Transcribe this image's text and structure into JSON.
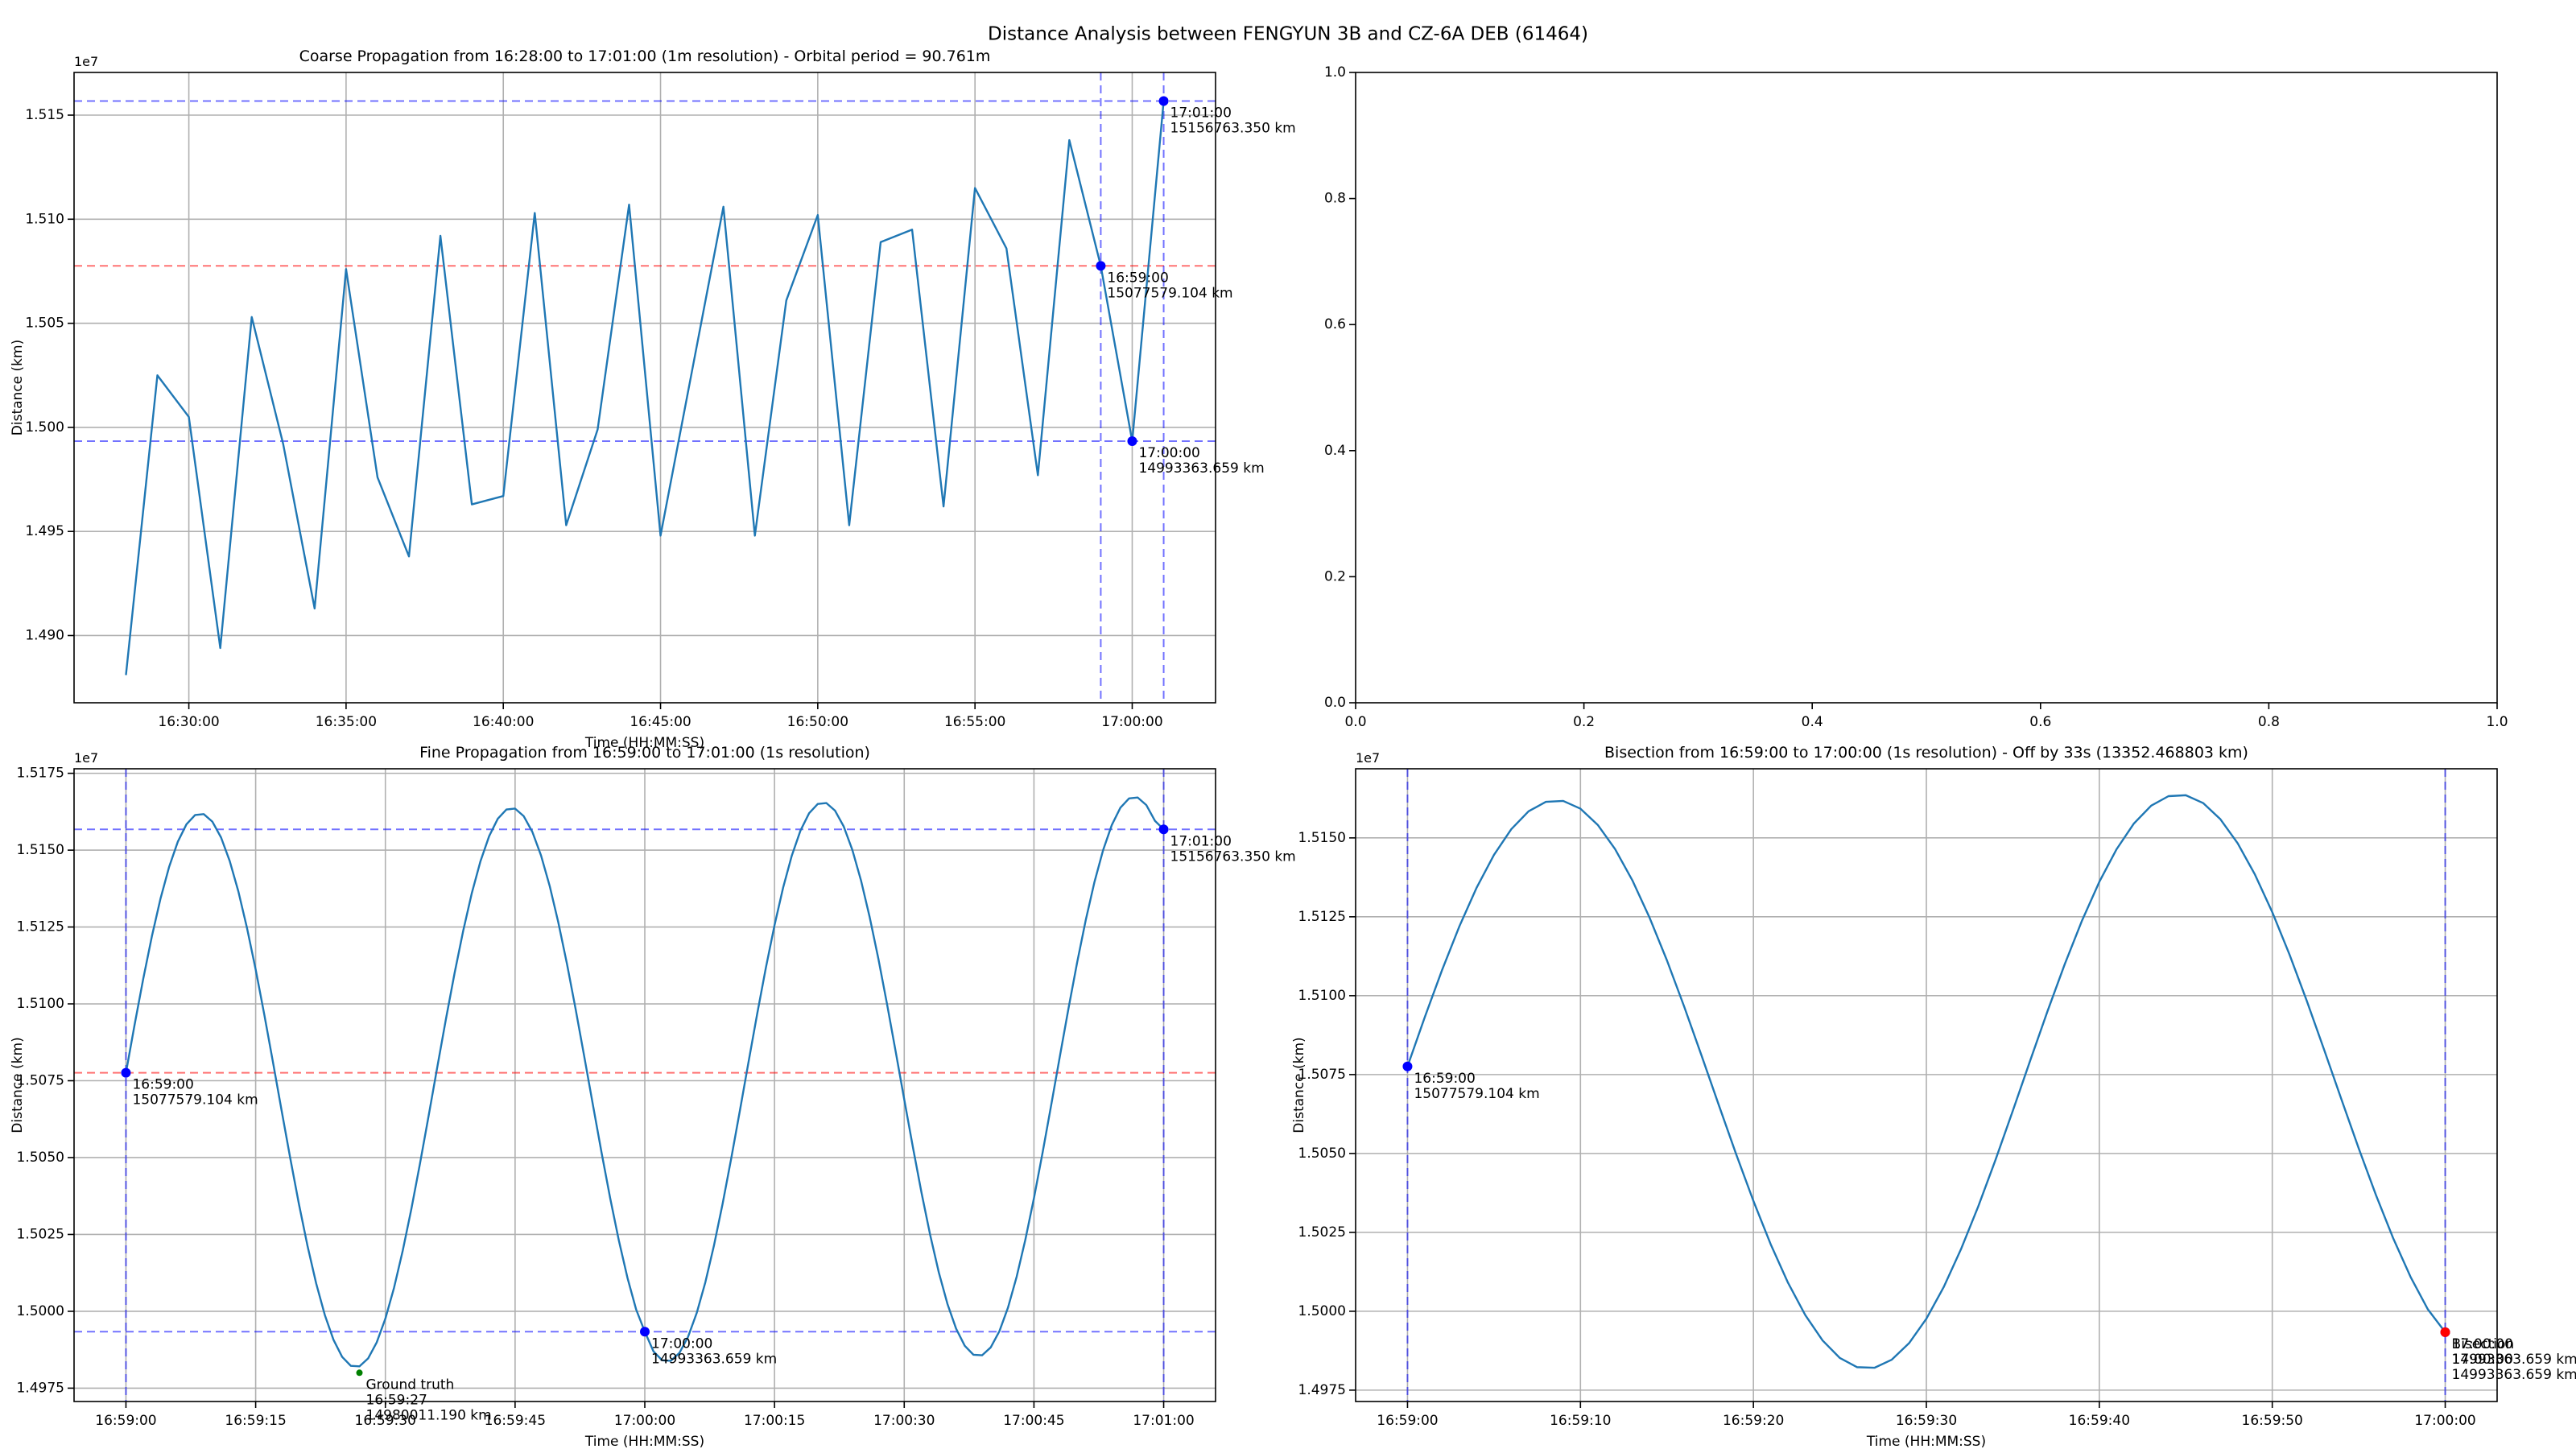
{
  "title": "Distance Analysis between FENGYUN 3B and CZ-6A DEB (61464)",
  "chart_data": [
    {
      "type": "line",
      "title": "Coarse Propagation from 16:28:00 to 17:01:00 (1m resolution) - Orbital period = 90.761m",
      "xlabel": "Time (HH:MM:SS)",
      "ylabel": "Distance (km)",
      "y_offset_label": "1e7",
      "grid": true,
      "color": "#1f77b4",
      "x": [
        "16:28:00",
        "16:29:00",
        "16:30:00",
        "16:31:00",
        "16:32:00",
        "16:33:00",
        "16:34:00",
        "16:35:00",
        "16:36:00",
        "16:37:00",
        "16:38:00",
        "16:39:00",
        "16:40:00",
        "16:41:00",
        "16:42:00",
        "16:43:00",
        "16:44:00",
        "16:45:00",
        "16:46:00",
        "16:47:00",
        "16:48:00",
        "16:49:00",
        "16:50:00",
        "16:51:00",
        "16:52:00",
        "16:53:00",
        "16:54:00",
        "16:55:00",
        "16:56:00",
        "16:57:00",
        "16:58:00",
        "16:59:00",
        "17:00:00",
        "17:01:00"
      ],
      "values": [
        14881000,
        15025000,
        15005000,
        14894000,
        15053000,
        14992000,
        14913000,
        15076000,
        14976000,
        14938000,
        15092000,
        14963000,
        14967000,
        15103000,
        14953000,
        14999000,
        15107000,
        14948000,
        15027000,
        15106000,
        14948000,
        15061000,
        15102000,
        14953000,
        15089000,
        15095000,
        14962000,
        15115000,
        15086000,
        14977000,
        15138000,
        15077579.104,
        14993363.659,
        15156763.35
      ],
      "xlim": [
        "16:26:21",
        "17:02:39"
      ],
      "xticks": [
        "16:30:00",
        "16:35:00",
        "16:40:00",
        "16:45:00",
        "16:50:00",
        "16:55:00",
        "17:00:00"
      ],
      "ylim": [
        14867700,
        15170500
      ],
      "yticks": [
        {
          "value": 14900000,
          "label": "1.490"
        },
        {
          "value": 14950000,
          "label": "1.495"
        },
        {
          "value": 15000000,
          "label": "1.500"
        },
        {
          "value": 15050000,
          "label": "1.505"
        },
        {
          "value": 15100000,
          "label": "1.510"
        },
        {
          "value": 15150000,
          "label": "1.515"
        }
      ],
      "hlines": [
        {
          "y": 15156763.35,
          "color": "#0000ff"
        },
        {
          "y": 14993363.659,
          "color": "#0000ff"
        },
        {
          "y": 15077579.104,
          "color": "#ff0000"
        }
      ],
      "vlines": [
        {
          "x": "16:59:00",
          "color": "#0000ff"
        },
        {
          "x": "17:01:00",
          "color": "#0000ff"
        }
      ],
      "markers": [
        {
          "x": "16:59:00",
          "y": 15077579.104,
          "color": "#0000ff",
          "text": [
            "16:59:00",
            "15077579.104 km"
          ]
        },
        {
          "x": "17:00:00",
          "y": 14993363.659,
          "color": "#0000ff",
          "text": [
            "17:00:00",
            "14993363.659 km"
          ]
        },
        {
          "x": "17:01:00",
          "y": 15156763.35,
          "color": "#0000ff",
          "text": [
            "17:01:00",
            "15156763.350 km"
          ]
        }
      ]
    },
    {
      "type": "empty",
      "grid": false,
      "xlim": [
        0,
        1
      ],
      "xticks": [
        {
          "value": 0,
          "label": "0.0"
        },
        0.2,
        0.4,
        0.6,
        0.8,
        {
          "value": 1,
          "label": "1.0"
        }
      ],
      "ylim": [
        0,
        1
      ],
      "yticks": [
        {
          "value": 0,
          "label": "0.0"
        },
        0.2,
        0.4,
        0.6,
        0.8,
        {
          "value": 1,
          "label": "1.0"
        }
      ]
    },
    {
      "type": "line",
      "title": "Fine Propagation from 16:59:00 to 17:01:00 (1s resolution)",
      "xlabel": "Time (HH:MM:SS)",
      "ylabel": "Distance (km)",
      "y_offset_label": "1e7",
      "grid": true,
      "color": "#1f77b4",
      "x": [
        "16:59:00",
        "16:59:01",
        "16:59:02",
        "16:59:03",
        "16:59:04",
        "16:59:05",
        "16:59:06",
        "16:59:07",
        "16:59:08",
        "16:59:09",
        "16:59:10",
        "16:59:11",
        "16:59:12",
        "16:59:13",
        "16:59:14",
        "16:59:15",
        "16:59:16",
        "16:59:17",
        "16:59:18",
        "16:59:19",
        "16:59:20",
        "16:59:21",
        "16:59:22",
        "16:59:23",
        "16:59:24",
        "16:59:25",
        "16:59:26",
        "16:59:27",
        "16:59:28",
        "16:59:29",
        "16:59:30",
        "16:59:31",
        "16:59:32",
        "16:59:33",
        "16:59:34",
        "16:59:35",
        "16:59:36",
        "16:59:37",
        "16:59:38",
        "16:59:39",
        "16:59:40",
        "16:59:41",
        "16:59:42",
        "16:59:43",
        "16:59:44",
        "16:59:45",
        "16:59:46",
        "16:59:47",
        "16:59:48",
        "16:59:49",
        "16:59:50",
        "16:59:51",
        "16:59:52",
        "16:59:53",
        "16:59:54",
        "16:59:55",
        "16:59:56",
        "16:59:57",
        "16:59:58",
        "16:59:59",
        "17:00:00",
        "17:00:01",
        "17:00:02",
        "17:00:03",
        "17:00:04",
        "17:00:05",
        "17:00:06",
        "17:00:07",
        "17:00:08",
        "17:00:09",
        "17:00:10",
        "17:00:11",
        "17:00:12",
        "17:00:13",
        "17:00:14",
        "17:00:15",
        "17:00:16",
        "17:00:17",
        "17:00:18",
        "17:00:19",
        "17:00:20",
        "17:00:21",
        "17:00:22",
        "17:00:23",
        "17:00:24",
        "17:00:25",
        "17:00:26",
        "17:00:27",
        "17:00:28",
        "17:00:29",
        "17:00:30",
        "17:00:31",
        "17:00:32",
        "17:00:33",
        "17:00:34",
        "17:00:35",
        "17:00:36",
        "17:00:37",
        "17:00:38",
        "17:00:39",
        "17:00:40",
        "17:00:41",
        "17:00:42",
        "17:00:43",
        "17:00:44",
        "17:00:45",
        "17:00:46",
        "17:00:47",
        "17:00:48",
        "17:00:49",
        "17:00:50",
        "17:00:51",
        "17:00:52",
        "17:00:53",
        "17:00:54",
        "17:00:55",
        "17:00:56",
        "17:00:57",
        "17:00:58",
        "17:00:59",
        "17:01:00"
      ],
      "values": [
        15077579.104,
        15093204,
        15108151,
        15121984,
        15134269,
        15144627,
        15152759,
        15158420,
        15161429,
        15161715,
        15159249,
        15154113,
        15146480,
        15136566,
        15124670,
        15111190,
        15096488,
        15081045,
        15065321,
        15049796,
        15034949,
        15021216,
        15009031,
        14998773,
        14990741,
        14985180,
        14982271,
        14982085,
        14984651,
        14989887,
        14997620,
        15007634,
        15019630,
        15033210,
        15048012,
        15063555,
        15079379,
        15095004,
        15109951,
        15123784,
        15136069,
        15146427,
        15154559,
        15160220,
        15163229,
        15163515,
        15161049,
        15155913,
        15148280,
        15138366,
        15126470,
        15112990,
        15098288,
        15082845,
        15067121,
        15051596,
        15036749,
        15023016,
        15010831,
        15000573,
        14993363.659,
        14986980,
        14984071,
        14983885,
        14986451,
        14991687,
        14999420,
        15009434,
        15021430,
        15035010,
        15049812,
        15065355,
        15081179,
        15096804,
        15111751,
        15125584,
        15137869,
        15148227,
        15156359,
        15162020,
        15165029,
        15165315,
        15162849,
        15157713,
        15150080,
        15140166,
        15128270,
        15114790,
        15100088,
        15084645,
        15068921,
        15053396,
        15038549,
        15024816,
        15012631,
        15002373,
        14994341,
        14988780,
        14985871,
        14985685,
        14988251,
        14993487,
        15001220,
        15011234,
        15023230,
        15036810,
        15051612,
        15067155,
        15082979,
        15098604,
        15113551,
        15127384,
        15139669,
        15150027,
        15158159,
        15163820,
        15166829,
        15167115,
        15164649,
        15159513,
        15156763.35
      ],
      "xlim": [
        "16:58:54",
        "17:01:06"
      ],
      "xticks": [
        "16:59:00",
        "16:59:15",
        "16:59:30",
        "16:59:45",
        "17:00:00",
        "17:00:15",
        "17:00:30",
        "17:00:45",
        "17:01:00"
      ],
      "ylim": [
        14970656,
        15176470
      ],
      "yticks": [
        {
          "value": 14975000,
          "label": "1.4975"
        },
        {
          "value": 15000000,
          "label": "1.5000"
        },
        {
          "value": 15025000,
          "label": "1.5025"
        },
        {
          "value": 15050000,
          "label": "1.5050"
        },
        {
          "value": 15075000,
          "label": "1.5075"
        },
        {
          "value": 15100000,
          "label": "1.5100"
        },
        {
          "value": 15125000,
          "label": "1.5125"
        },
        {
          "value": 15150000,
          "label": "1.5150"
        },
        {
          "value": 15175000,
          "label": "1.5175"
        }
      ],
      "hlines": [
        {
          "y": 15156763.35,
          "color": "#0000ff"
        },
        {
          "y": 14993363.659,
          "color": "#0000ff"
        },
        {
          "y": 15077579.104,
          "color": "#ff0000"
        }
      ],
      "vlines": [
        {
          "x": "16:59:00",
          "color": "#0000ff"
        },
        {
          "x": "17:01:00",
          "color": "#0000ff"
        }
      ],
      "markers": [
        {
          "x": "16:59:00",
          "y": 15077579.104,
          "color": "#0000ff",
          "text": [
            "16:59:00",
            "15077579.104 km"
          ]
        },
        {
          "x": "17:00:00",
          "y": 14993363.659,
          "color": "#0000ff",
          "text": [
            "17:00:00",
            "14993363.659 km"
          ]
        },
        {
          "x": "17:01:00",
          "y": 15156763.35,
          "color": "#0000ff",
          "text": [
            "17:01:00",
            "15156763.350 km"
          ]
        },
        {
          "x": "16:59:27",
          "y": 14980011.19,
          "color": "#008000",
          "text": [
            "Ground truth",
            "16:59:27",
            "14980011.190 km"
          ]
        }
      ]
    },
    {
      "type": "line",
      "title": "Bisection from 16:59:00 to 17:00:00 (1s resolution) - Off by 33s (13352.468803 km)",
      "xlabel": "Time (HH:MM:SS)",
      "ylabel": "Distance (km)",
      "y_offset_label": "1e7",
      "grid": true,
      "color": "#1f77b4",
      "x": [
        "16:59:00",
        "16:59:01",
        "16:59:02",
        "16:59:03",
        "16:59:04",
        "16:59:05",
        "16:59:06",
        "16:59:07",
        "16:59:08",
        "16:59:09",
        "16:59:10",
        "16:59:11",
        "16:59:12",
        "16:59:13",
        "16:59:14",
        "16:59:15",
        "16:59:16",
        "16:59:17",
        "16:59:18",
        "16:59:19",
        "16:59:20",
        "16:59:21",
        "16:59:22",
        "16:59:23",
        "16:59:24",
        "16:59:25",
        "16:59:26",
        "16:59:27",
        "16:59:28",
        "16:59:29",
        "16:59:30",
        "16:59:31",
        "16:59:32",
        "16:59:33",
        "16:59:34",
        "16:59:35",
        "16:59:36",
        "16:59:37",
        "16:59:38",
        "16:59:39",
        "16:59:40",
        "16:59:41",
        "16:59:42",
        "16:59:43",
        "16:59:44",
        "16:59:45",
        "16:59:46",
        "16:59:47",
        "16:59:48",
        "16:59:49",
        "16:59:50",
        "16:59:51",
        "16:59:52",
        "16:59:53",
        "16:59:54",
        "16:59:55",
        "16:59:56",
        "16:59:57",
        "16:59:58",
        "16:59:59",
        "17:00:00"
      ],
      "values": [
        15077579.104,
        15093204,
        15108151,
        15121984,
        15134269,
        15144627,
        15152759,
        15158420,
        15161429,
        15161715,
        15159249,
        15154113,
        15146480,
        15136566,
        15124670,
        15111190,
        15096488,
        15081045,
        15065321,
        15049796,
        15034949,
        15021216,
        15009031,
        14998773,
        14990741,
        14985180,
        14982271,
        14982085,
        14984651,
        14989887,
        14997620,
        15007634,
        15019630,
        15033210,
        15048012,
        15063555,
        15079379,
        15095004,
        15109951,
        15123784,
        15136069,
        15146427,
        15154559,
        15160220,
        15163229,
        15163515,
        15161049,
        15155913,
        15148280,
        15138366,
        15126470,
        15112990,
        15098288,
        15082845,
        15067121,
        15051596,
        15036749,
        15023016,
        15010831,
        15000573,
        14993363.659
      ],
      "xlim": [
        "16:58:57",
        "17:00:03"
      ],
      "xticks": [
        "16:59:00",
        "16:59:10",
        "16:59:20",
        "16:59:30",
        "16:59:40",
        "16:59:50",
        "17:00:00"
      ],
      "ylim": [
        14971400,
        15171900
      ],
      "yticks": [
        {
          "value": 14975000,
          "label": "1.4975"
        },
        {
          "value": 15000000,
          "label": "1.5000"
        },
        {
          "value": 15025000,
          "label": "1.5025"
        },
        {
          "value": 15050000,
          "label": "1.5050"
        },
        {
          "value": 15075000,
          "label": "1.5075"
        },
        {
          "value": 15100000,
          "label": "1.5100"
        },
        {
          "value": 15125000,
          "label": "1.5125"
        },
        {
          "value": 15150000,
          "label": "1.5150"
        }
      ],
      "hlines": [],
      "vlines": [
        {
          "x": "16:59:00",
          "color": "#0000ff"
        },
        {
          "x": "17:00:00",
          "color": "#0000ff"
        }
      ],
      "markers": [
        {
          "x": "16:59:00",
          "y": 15077579.104,
          "color": "#0000ff",
          "text": [
            "16:59:00",
            "15077579.104 km"
          ]
        },
        {
          "x": "17:00:00",
          "y": 14993363.659,
          "color": "#0000ff",
          "text": [
            "17:00:00",
            "14993363.659 km"
          ]
        },
        {
          "x": "17:00:00",
          "y": 14993363.659,
          "color": "#ff0000",
          "text": [
            "Bisection",
            "17:00:00",
            "14993363.659 km"
          ]
        }
      ]
    }
  ]
}
